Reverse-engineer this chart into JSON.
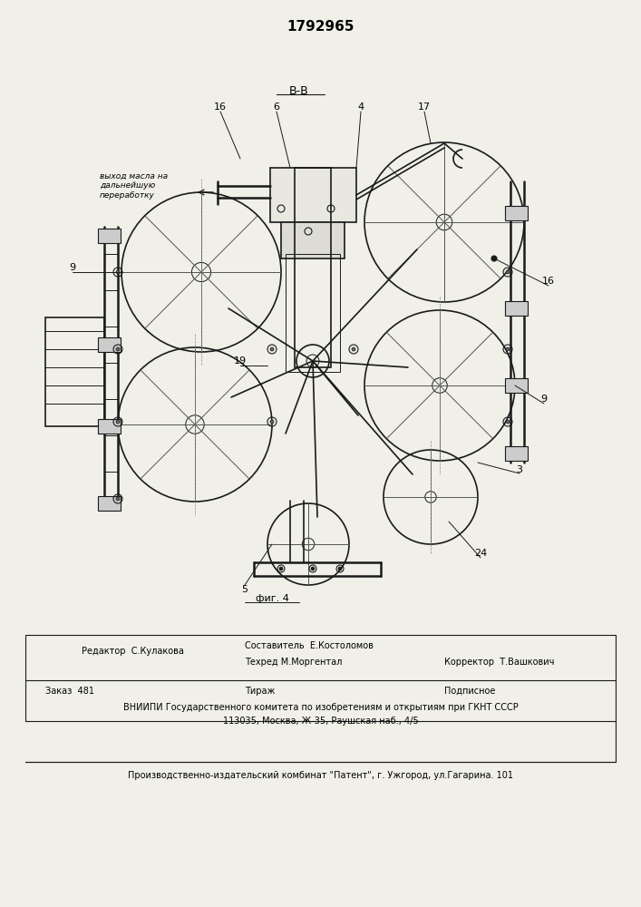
{
  "patent_number": "1792965",
  "figure_label": "фиг. 4",
  "section_label": "В-В",
  "background_color": "#f0efe8",
  "draw_bg": "#ffffff",
  "editor_line": "Редактор  С.Кулакова",
  "composer_line": "Составитель  Е.Костоломов",
  "techred_line": "Техред М.Моргентал",
  "corrector_line": "Корректор  Т.Вашкович",
  "order_line": "Заказ  481",
  "tirage_line": "Тираж",
  "subscription_line": "Подписное",
  "vniipи_line1": "ВНИИПИ Государственного комитета по изобретениям и открытиям при ГКНТ СССР",
  "vniipи_line2": "113035, Москва, Ж-35, Раушская наб., 4/5",
  "publisher_line": "Производственно-издательский комбинат \"Патент\", г. Ужгород, ул.Гагарина. 101",
  "oil_label": "выход масла на\nдальнейшую\nпереработку"
}
